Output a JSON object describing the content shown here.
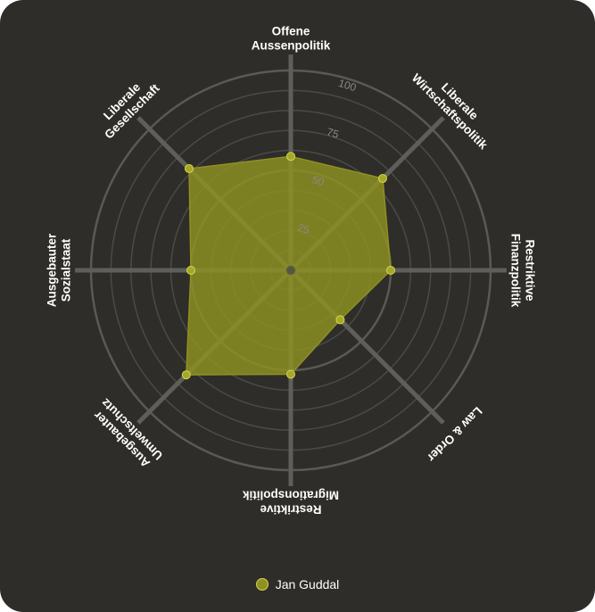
{
  "chart_data": {
    "type": "radar",
    "axes": [
      [
        "Offene",
        "Aussenpolitik"
      ],
      [
        "Liberale",
        "Wirtschaftspolitik"
      ],
      [
        "Restriktive",
        "Finanzpolitik"
      ],
      [
        "Law & Order"
      ],
      [
        "Restriktive",
        "Migrationspolitik"
      ],
      [
        "Ausgebauter",
        "Umweltschutz"
      ],
      [
        "Ausgebauter",
        "Sozialstaat"
      ],
      [
        "Liberale",
        "Gesellschaft"
      ]
    ],
    "rlim": [
      0,
      100
    ],
    "ticks": [
      25,
      50,
      75,
      100
    ],
    "grid_rings": 10,
    "series": [
      {
        "name": "Jan Guddal",
        "values": [
          57,
          65,
          50,
          35,
          52,
          74,
          50,
          72
        ],
        "color": "#8f9122"
      }
    ],
    "legend_position": "bottom"
  },
  "colors": {
    "background": "#2e2d29",
    "grid": "#4a4a46",
    "spoke": "#5f5f5a",
    "series_fill": "#8f9122",
    "point": "#a5a82a",
    "point_stroke": "#d4d84a"
  }
}
